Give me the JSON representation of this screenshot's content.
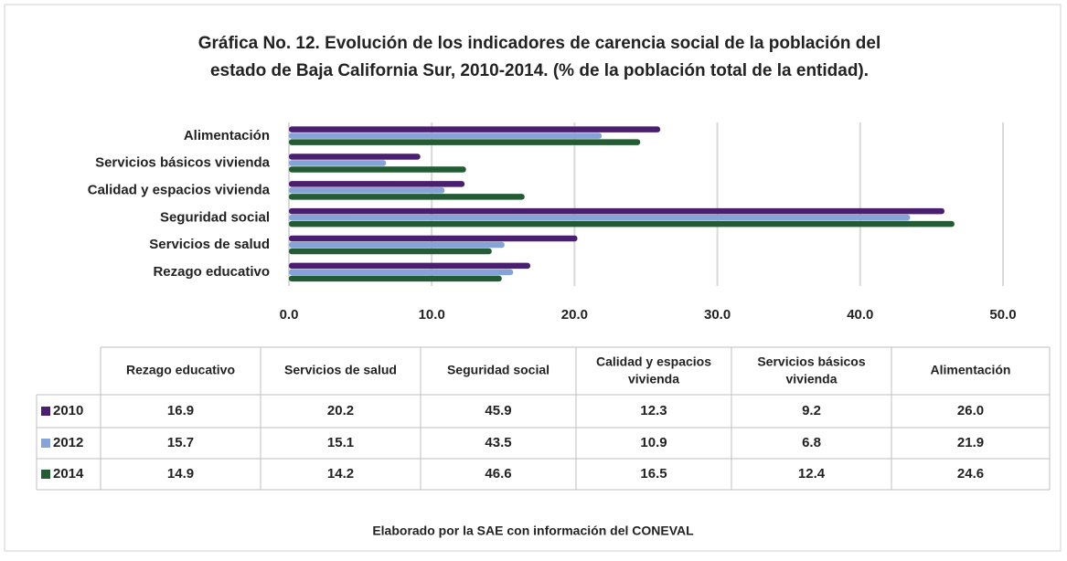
{
  "chart_data": {
    "type": "bar",
    "orientation": "horizontal",
    "title": [
      "Gráfica No. 12. Evolución de los indicadores de carencia social de la población del",
      "estado de Baja California Sur, 2010-2014. (% de la población total de la entidad)."
    ],
    "categories": [
      "Rezago educativo",
      "Servicios de salud",
      "Seguridad social",
      "Calidad y espacios vivienda",
      "Servicios básicos vivienda",
      "Alimentación"
    ],
    "table_headers": [
      "Rezago educativo",
      "Servicios de salud",
      "Seguridad social",
      [
        "Calidad y espacios",
        "vivienda"
      ],
      [
        "Servicios básicos",
        "vivienda"
      ],
      "Alimentación"
    ],
    "series": [
      {
        "name": "2010",
        "color": "#4b1f6f",
        "values": [
          16.9,
          20.2,
          45.9,
          12.3,
          9.2,
          26.0
        ],
        "value_labels": [
          "16.9",
          "20.2",
          "45.9",
          "12.3",
          "9.2",
          "26.0"
        ]
      },
      {
        "name": "2012",
        "color": "#86a3d8",
        "values": [
          15.7,
          15.1,
          43.5,
          10.9,
          6.8,
          21.9
        ],
        "value_labels": [
          "15.7",
          "15.1",
          "43.5",
          "10.9",
          "6.8",
          "21.9"
        ]
      },
      {
        "name": "2014",
        "color": "#235c34",
        "values": [
          14.9,
          14.2,
          46.6,
          16.5,
          12.4,
          24.6
        ],
        "value_labels": [
          "14.9",
          "14.2",
          "46.6",
          "16.5",
          "12.4",
          "24.6"
        ]
      }
    ],
    "xlim": [
      0,
      50
    ],
    "xticks": [
      {
        "value": 0,
        "label": "0.0"
      },
      {
        "value": 10,
        "label": "10.0"
      },
      {
        "value": 20,
        "label": "20.0"
      },
      {
        "value": 30,
        "label": "30.0"
      },
      {
        "value": 40,
        "label": "40.0"
      },
      {
        "value": 50,
        "label": "50.0"
      }
    ],
    "grid": true,
    "footnote": "Elaborado por la SAE con información del CONEVAL"
  }
}
